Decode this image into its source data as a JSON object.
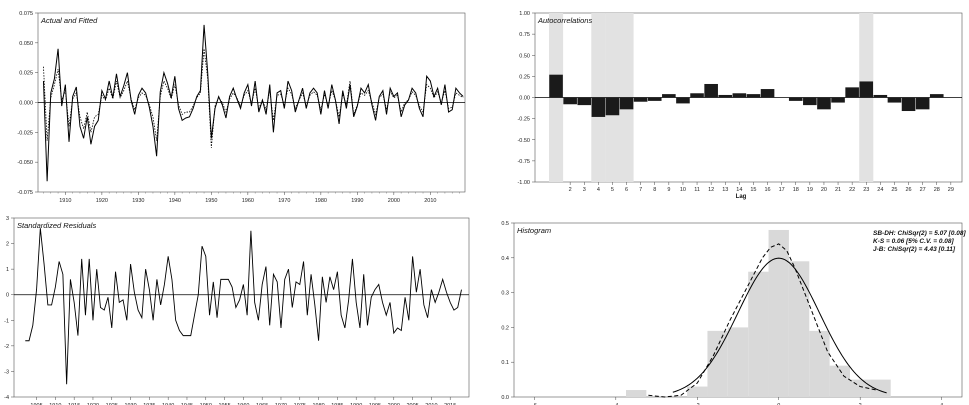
{
  "chart_data": [
    {
      "id": "actual_fitted",
      "type": "line",
      "title": "Actual and Fitted",
      "x_start": 1904,
      "x_end": 2019,
      "ylim": [
        -0.075,
        0.075
      ],
      "yticks": [
        0.075,
        0.05,
        0.025,
        0.0,
        -0.025,
        -0.05,
        -0.075
      ],
      "ytick_labels": [
        "0.075",
        "0.050",
        "0.025",
        "0.000",
        "-0.025",
        "-0.050",
        "-0.075"
      ],
      "xtick_labels": [
        "1910",
        "1920",
        "1930",
        "1940",
        "1950",
        "1960",
        "1970",
        "1980",
        "1990",
        "2000",
        "2010"
      ],
      "xtick_values": [
        1910,
        1920,
        1930,
        1940,
        1950,
        1960,
        1970,
        1980,
        1990,
        2000,
        2010
      ],
      "series": [
        {
          "style": "solid",
          "values": [
            0.018,
            -0.066,
            0.008,
            0.02,
            0.045,
            -0.003,
            0.015,
            -0.033,
            0.005,
            0.013,
            -0.02,
            -0.03,
            -0.012,
            -0.035,
            -0.02,
            -0.015,
            0.01,
            0.003,
            0.018,
            0.004,
            0.024,
            0.005,
            0.014,
            0.025,
            0.002,
            -0.01,
            0.006,
            0.012,
            0.008,
            -0.004,
            -0.02,
            -0.045,
            0.009,
            0.025,
            0.016,
            0.004,
            0.022,
            -0.005,
            -0.015,
            -0.013,
            -0.012,
            -0.005,
            0.005,
            0.01,
            0.065,
            0.025,
            -0.03,
            -0.005,
            0.005,
            -0.002,
            -0.013,
            0.005,
            0.012,
            0.003,
            -0.005,
            0.008,
            0.015,
            -0.003,
            0.018,
            -0.008,
            0.002,
            -0.01,
            0.015,
            -0.025,
            0.008,
            0.01,
            -0.005,
            0.018,
            0.01,
            -0.008,
            0.002,
            0.012,
            -0.005,
            0.008,
            0.012,
            0.008,
            -0.01,
            0.01,
            -0.005,
            0.015,
            0.002,
            -0.018,
            0.01,
            -0.005,
            0.015,
            -0.012,
            -0.003,
            0.012,
            0.008,
            0.015,
            -0.002,
            -0.015,
            0.005,
            0.01,
            -0.01,
            0.012,
            0.005,
            0.008,
            -0.012,
            -0.002,
            0.002,
            0.012,
            0.008,
            -0.005,
            -0.012,
            0.022,
            0.018,
            0.005,
            0.012,
            -0.002,
            0.015,
            -0.008,
            -0.006,
            0.012,
            0.008,
            0.005
          ]
        },
        {
          "style": "dotted",
          "values": [
            0.03,
            -0.032,
            0.004,
            0.015,
            0.028,
            0.002,
            0.01,
            -0.02,
            0.003,
            0.008,
            -0.012,
            -0.022,
            -0.008,
            -0.025,
            -0.012,
            -0.01,
            0.006,
            0.002,
            0.012,
            0.003,
            0.018,
            0.004,
            0.01,
            0.018,
            0.003,
            -0.006,
            0.004,
            0.008,
            0.006,
            -0.002,
            -0.012,
            -0.032,
            0.005,
            0.018,
            0.012,
            0.003,
            0.015,
            -0.002,
            -0.01,
            -0.008,
            -0.008,
            -0.003,
            0.004,
            0.008,
            0.045,
            0.02,
            -0.038,
            -0.003,
            0.004,
            0.0,
            -0.008,
            0.003,
            0.008,
            0.004,
            -0.003,
            0.006,
            0.01,
            -0.001,
            0.012,
            -0.005,
            0.002,
            -0.006,
            0.01,
            -0.015,
            0.006,
            0.007,
            -0.002,
            0.012,
            0.007,
            -0.005,
            0.002,
            0.008,
            -0.003,
            0.006,
            0.009,
            0.006,
            -0.006,
            0.007,
            -0.003,
            0.01,
            0.002,
            -0.012,
            0.007,
            -0.002,
            0.018,
            -0.01,
            -0.002,
            0.008,
            0.006,
            0.01,
            0.0,
            -0.01,
            0.004,
            0.007,
            -0.006,
            0.009,
            0.004,
            0.006,
            -0.008,
            0.0,
            0.002,
            0.009,
            0.006,
            -0.003,
            -0.008,
            0.015,
            0.012,
            0.004,
            0.009,
            0.0,
            0.01,
            -0.005,
            -0.004,
            0.008,
            0.006,
            0.004
          ]
        }
      ]
    },
    {
      "id": "autocorrelations",
      "type": "bar",
      "title": "Autocorrelations",
      "xlabel": "Lag",
      "ylim": [
        -1.0,
        1.0
      ],
      "yticks": [
        1.0,
        0.75,
        0.5,
        0.25,
        0.0,
        -0.25,
        -0.5,
        -0.75,
        -1.0
      ],
      "ytick_labels": [
        "1.00",
        "0.75",
        "0.50",
        "0.25",
        "0.00",
        "-0.25",
        "-0.50",
        "-0.75",
        "-1.00"
      ],
      "categories": [
        "1",
        "2",
        "3",
        "4",
        "5",
        "6",
        "7",
        "8",
        "9",
        "10",
        "11",
        "12",
        "13",
        "14",
        "15",
        "16",
        "17",
        "18",
        "19",
        "20",
        "21",
        "22",
        "23",
        "24",
        "25",
        "26",
        "27",
        "28",
        "29"
      ],
      "category_labels_shown": [
        "2",
        "3",
        "4",
        "5",
        "6",
        "7",
        "8",
        "9",
        "10",
        "11",
        "12",
        "13",
        "14",
        "15",
        "16",
        "17",
        "18",
        "19",
        "20",
        "21",
        "22",
        "23",
        "24",
        "25",
        "26",
        "27",
        "28",
        "29"
      ],
      "values": [
        0.27,
        -0.08,
        -0.09,
        -0.23,
        -0.21,
        -0.14,
        -0.05,
        -0.04,
        0.04,
        -0.07,
        0.05,
        0.16,
        0.03,
        0.05,
        0.04,
        0.1,
        0.0,
        -0.04,
        -0.09,
        -0.14,
        -0.06,
        0.12,
        0.19,
        0.03,
        -0.06,
        -0.16,
        -0.14,
        0.04,
        0.0
      ],
      "shaded_lags": [
        1,
        4,
        5,
        6,
        23
      ]
    },
    {
      "id": "standardized_residuals",
      "type": "line",
      "title": "Standardized Residuals",
      "x_start": 1902,
      "x_end": 2019,
      "ylim": [
        -4,
        3
      ],
      "yticks": [
        3,
        2,
        1,
        0,
        -1,
        -2,
        -3,
        -4
      ],
      "ytick_labels": [
        "3",
        "2",
        "1",
        "0",
        "-1",
        "-2",
        "-3",
        "-4"
      ],
      "xtick_values": [
        1905,
        1910,
        1915,
        1920,
        1925,
        1930,
        1935,
        1940,
        1945,
        1950,
        1955,
        1960,
        1965,
        1970,
        1975,
        1980,
        1985,
        1990,
        1995,
        2000,
        2005,
        2010,
        2015
      ],
      "xtick_labels": [
        "1905",
        "1910",
        "1915",
        "1920",
        "1925",
        "1930",
        "1935",
        "1940",
        "1945",
        "1950",
        "1955",
        "1960",
        "1965",
        "1970",
        "1975",
        "1980",
        "1985",
        "1990",
        "1995",
        "2000",
        "2005",
        "2010",
        "2015"
      ],
      "values": [
        -1.8,
        -1.8,
        -1.2,
        0.2,
        2.6,
        1.2,
        -0.4,
        -0.4,
        0.3,
        1.3,
        0.8,
        -3.5,
        0.6,
        -0.3,
        -1.6,
        1.4,
        -0.8,
        1.4,
        -1.0,
        1.0,
        -0.5,
        -0.6,
        -0.1,
        -1.3,
        0.9,
        -0.3,
        -0.2,
        -1.0,
        1.2,
        0.1,
        -0.6,
        -0.9,
        1.0,
        0.2,
        -1.0,
        0.6,
        -0.4,
        0.4,
        1.5,
        0.6,
        -1.0,
        -1.4,
        -1.6,
        -1.6,
        -1.6,
        -0.8,
        0.0,
        1.9,
        1.5,
        -0.8,
        0.5,
        -0.9,
        0.6,
        0.6,
        0.6,
        0.3,
        -0.5,
        -0.2,
        0.4,
        -0.8,
        2.5,
        -0.3,
        -1.0,
        0.4,
        1.1,
        -1.2,
        0.8,
        0.5,
        -1.3,
        0.6,
        1.0,
        -0.5,
        0.5,
        0.4,
        1.3,
        -0.8,
        0.8,
        -0.4,
        -1.8,
        0.7,
        -0.3,
        0.7,
        0.2,
        0.9,
        -0.8,
        -1.3,
        -0.2,
        1.4,
        -0.3,
        -1.3,
        0.8,
        -1.2,
        -0.1,
        0.2,
        0.4,
        -0.3,
        -0.8,
        -0.3,
        -1.5,
        -1.3,
        -1.4,
        -0.1,
        -1.0,
        1.5,
        0.1,
        1.0,
        -0.4,
        -0.9,
        0.2,
        -0.3,
        0.1,
        0.6,
        0.1,
        -0.3,
        -0.6,
        -0.5,
        0.2
      ]
    },
    {
      "id": "histogram",
      "type": "bar",
      "title": "Histogram",
      "xlim": [
        -6.5,
        4.5
      ],
      "ylim": [
        0.0,
        0.5
      ],
      "xticks": [
        -6,
        -4,
        -2,
        0,
        2,
        4
      ],
      "xtick_labels": [
        "-6",
        "-4",
        "-2",
        "0",
        "2",
        "4"
      ],
      "yticks": [
        0.5,
        0.4,
        0.3,
        0.2,
        0.1,
        0.0
      ],
      "ytick_labels": [
        "0.5",
        "0.4",
        "0.3",
        "0.2",
        "0.1",
        "0.0"
      ],
      "bin_edges": [
        -3.75,
        -3.25,
        -2.75,
        -2.25,
        -1.75,
        -1.25,
        -0.75,
        -0.25,
        0.25,
        0.75,
        1.25,
        1.75,
        2.25,
        2.75
      ],
      "values": [
        0.02,
        0.0,
        0.0,
        0.03,
        0.19,
        0.2,
        0.36,
        0.48,
        0.39,
        0.19,
        0.09,
        0.05,
        0.05
      ],
      "curve_solid": {
        "mean": 0.0,
        "sd": 1.0
      },
      "curve_dashed_x": [
        -3.2,
        -2.8,
        -2.4,
        -2.0,
        -1.6,
        -1.2,
        -0.8,
        -0.4,
        -0.2,
        0.0,
        0.2,
        0.4,
        0.8,
        1.2,
        1.6,
        2.0,
        2.4
      ],
      "curve_dashed_y": [
        0.005,
        0.0,
        0.005,
        0.04,
        0.12,
        0.22,
        0.31,
        0.4,
        0.43,
        0.44,
        0.42,
        0.37,
        0.25,
        0.13,
        0.06,
        0.03,
        0.02
      ],
      "stats": [
        "SB-DH: ChiSqr(2) = 5.07 [0.08]",
        "K-S = 0.06 [5% C.V. = 0.08]",
        "J-B: ChiSqr(2) = 4.43 [0.11]"
      ]
    }
  ]
}
